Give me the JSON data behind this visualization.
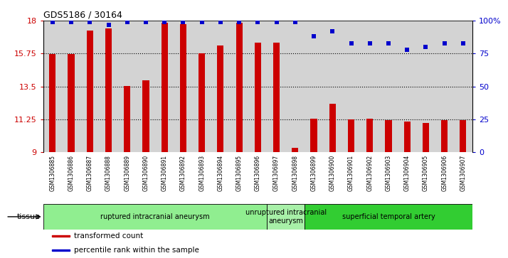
{
  "title": "GDS5186 / 30164",
  "samples": [
    "GSM1306885",
    "GSM1306886",
    "GSM1306887",
    "GSM1306888",
    "GSM1306889",
    "GSM1306890",
    "GSM1306891",
    "GSM1306892",
    "GSM1306893",
    "GSM1306894",
    "GSM1306895",
    "GSM1306896",
    "GSM1306897",
    "GSM1306898",
    "GSM1306899",
    "GSM1306900",
    "GSM1306901",
    "GSM1306902",
    "GSM1306903",
    "GSM1306904",
    "GSM1306905",
    "GSM1306906",
    "GSM1306907"
  ],
  "bar_values": [
    15.7,
    15.7,
    17.3,
    17.45,
    13.55,
    13.9,
    17.85,
    17.75,
    15.75,
    16.3,
    17.85,
    16.5,
    16.5,
    9.3,
    11.3,
    12.3,
    11.25,
    11.3,
    11.2,
    11.1,
    11.0,
    11.2,
    11.2
  ],
  "percentile_values": [
    99,
    99,
    99,
    97,
    99,
    99,
    99,
    99,
    99,
    99,
    99,
    99,
    99,
    99,
    88,
    92,
    83,
    83,
    83,
    78,
    80,
    83,
    83
  ],
  "groups": [
    {
      "label": "ruptured intracranial aneurysm",
      "start": 0,
      "end": 12,
      "color": "#90EE90"
    },
    {
      "label": "unruptured intracranial\naneurysm",
      "start": 12,
      "end": 14,
      "color": "#a8f0a8"
    },
    {
      "label": "superficial temporal artery",
      "start": 14,
      "end": 23,
      "color": "#32CD32"
    }
  ],
  "ylim_left": [
    9,
    18
  ],
  "ylim_right": [
    0,
    100
  ],
  "yticks_left": [
    9,
    11.25,
    13.5,
    15.75,
    18
  ],
  "yticks_right": [
    0,
    25,
    50,
    75,
    100
  ],
  "bar_color": "#CC0000",
  "dot_color": "#0000CC",
  "hline_values": [
    15.75,
    13.5,
    11.25
  ],
  "legend_items": [
    {
      "label": "transformed count",
      "color": "#CC0000"
    },
    {
      "label": "percentile rank within the sample",
      "color": "#0000CC"
    }
  ],
  "tissue_label": "tissue",
  "plot_bg_color": "#d3d3d3",
  "xtick_bg_color": "#d3d3d3"
}
